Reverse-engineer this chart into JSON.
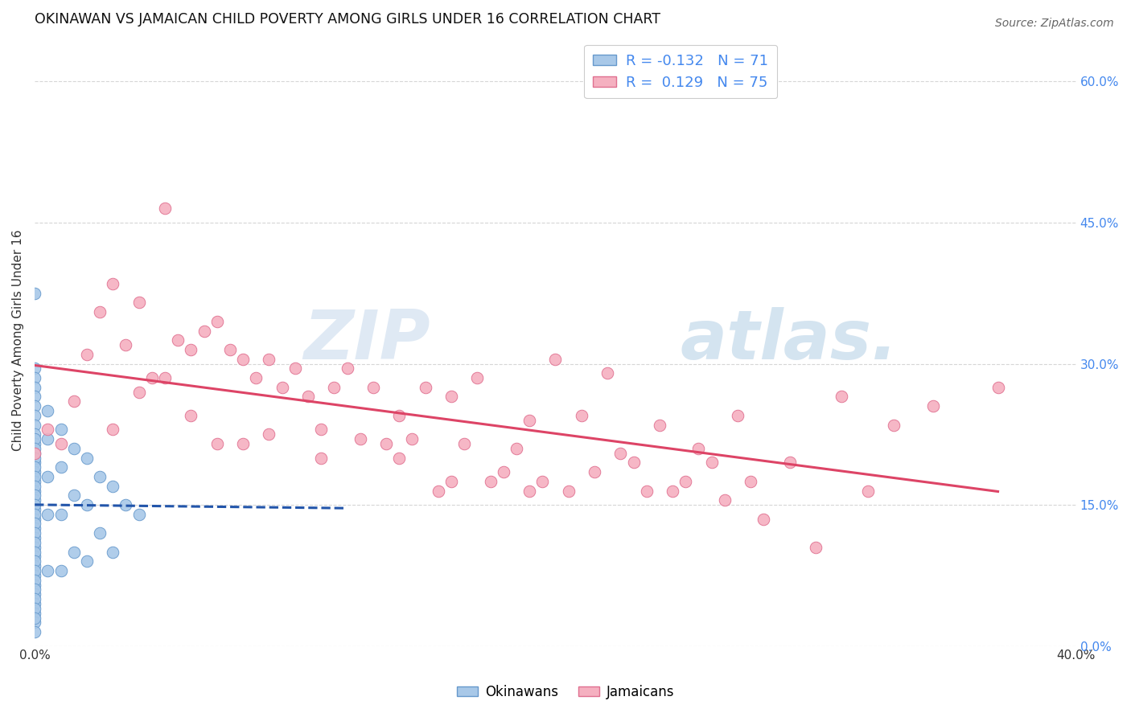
{
  "title": "OKINAWAN VS JAMAICAN CHILD POVERTY AMONG GIRLS UNDER 16 CORRELATION CHART",
  "source": "Source: ZipAtlas.com",
  "ylabel": "Child Poverty Among Girls Under 16",
  "xlim": [
    0.0,
    0.4
  ],
  "ylim": [
    0.0,
    0.65
  ],
  "xticks": [
    0.0,
    0.05,
    0.1,
    0.15,
    0.2,
    0.25,
    0.3,
    0.35,
    0.4
  ],
  "xticklabels": [
    "0.0%",
    "",
    "",
    "",
    "",
    "",
    "",
    "",
    "40.0%"
  ],
  "ytick_positions": [
    0.0,
    0.15,
    0.3,
    0.45,
    0.6
  ],
  "ytick_labels": [
    "0.0%",
    "15.0%",
    "30.0%",
    "45.0%",
    "60.0%"
  ],
  "legend_r_okinawan": "-0.132",
  "legend_n_okinawan": "71",
  "legend_r_jamaican": "0.129",
  "legend_n_jamaican": "75",
  "okinawan_color": "#a8c8e8",
  "jamaican_color": "#f5b0c0",
  "okinawan_edge": "#6699cc",
  "jamaican_edge": "#e07090",
  "trend_okinawan_color": "#2255aa",
  "trend_jamaican_color": "#dd4466",
  "watermark_zip": "ZIP",
  "watermark_atlas": "atlas.",
  "background_color": "#ffffff",
  "grid_color": "#cccccc",
  "title_color": "#111111",
  "axis_label_color": "#333333",
  "right_tick_color": "#4488ee",
  "okinawan_x": [
    0.0,
    0.0,
    0.0,
    0.0,
    0.0,
    0.0,
    0.0,
    0.0,
    0.0,
    0.0,
    0.0,
    0.0,
    0.0,
    0.0,
    0.0,
    0.0,
    0.0,
    0.0,
    0.0,
    0.0,
    0.0,
    0.0,
    0.0,
    0.0,
    0.0,
    0.0,
    0.0,
    0.0,
    0.0,
    0.0,
    0.0,
    0.0,
    0.0,
    0.0,
    0.0,
    0.0,
    0.0,
    0.0,
    0.0,
    0.0,
    0.0,
    0.0,
    0.0,
    0.0,
    0.0,
    0.0,
    0.0,
    0.0,
    0.0,
    0.0,
    0.005,
    0.005,
    0.005,
    0.005,
    0.005,
    0.01,
    0.01,
    0.01,
    0.01,
    0.015,
    0.015,
    0.015,
    0.02,
    0.02,
    0.02,
    0.025,
    0.025,
    0.03,
    0.03,
    0.035,
    0.04
  ],
  "okinawan_y": [
    0.375,
    0.295,
    0.285,
    0.275,
    0.265,
    0.255,
    0.245,
    0.235,
    0.225,
    0.215,
    0.205,
    0.195,
    0.185,
    0.175,
    0.165,
    0.155,
    0.145,
    0.135,
    0.125,
    0.115,
    0.105,
    0.095,
    0.085,
    0.075,
    0.065,
    0.055,
    0.045,
    0.035,
    0.025,
    0.015,
    0.22,
    0.21,
    0.2,
    0.19,
    0.18,
    0.17,
    0.16,
    0.15,
    0.14,
    0.13,
    0.12,
    0.11,
    0.1,
    0.09,
    0.08,
    0.07,
    0.06,
    0.05,
    0.04,
    0.03,
    0.25,
    0.22,
    0.18,
    0.14,
    0.08,
    0.23,
    0.19,
    0.14,
    0.08,
    0.21,
    0.16,
    0.1,
    0.2,
    0.15,
    0.09,
    0.18,
    0.12,
    0.17,
    0.1,
    0.15,
    0.14
  ],
  "jamaican_x": [
    0.0,
    0.005,
    0.01,
    0.015,
    0.02,
    0.025,
    0.03,
    0.03,
    0.035,
    0.04,
    0.04,
    0.045,
    0.05,
    0.05,
    0.055,
    0.06,
    0.06,
    0.065,
    0.07,
    0.07,
    0.075,
    0.08,
    0.08,
    0.085,
    0.09,
    0.09,
    0.095,
    0.1,
    0.105,
    0.11,
    0.11,
    0.115,
    0.12,
    0.125,
    0.13,
    0.135,
    0.14,
    0.14,
    0.145,
    0.15,
    0.155,
    0.16,
    0.16,
    0.165,
    0.17,
    0.175,
    0.18,
    0.185,
    0.19,
    0.19,
    0.195,
    0.2,
    0.205,
    0.21,
    0.215,
    0.22,
    0.225,
    0.23,
    0.235,
    0.24,
    0.245,
    0.25,
    0.255,
    0.26,
    0.265,
    0.27,
    0.275,
    0.28,
    0.29,
    0.3,
    0.31,
    0.32,
    0.33,
    0.345,
    0.37
  ],
  "jamaican_y": [
    0.205,
    0.23,
    0.215,
    0.26,
    0.31,
    0.355,
    0.385,
    0.23,
    0.32,
    0.365,
    0.27,
    0.285,
    0.465,
    0.285,
    0.325,
    0.315,
    0.245,
    0.335,
    0.345,
    0.215,
    0.315,
    0.305,
    0.215,
    0.285,
    0.305,
    0.225,
    0.275,
    0.295,
    0.265,
    0.23,
    0.2,
    0.275,
    0.295,
    0.22,
    0.275,
    0.215,
    0.245,
    0.2,
    0.22,
    0.275,
    0.165,
    0.265,
    0.175,
    0.215,
    0.285,
    0.175,
    0.185,
    0.21,
    0.24,
    0.165,
    0.175,
    0.305,
    0.165,
    0.245,
    0.185,
    0.29,
    0.205,
    0.195,
    0.165,
    0.235,
    0.165,
    0.175,
    0.21,
    0.195,
    0.155,
    0.245,
    0.175,
    0.135,
    0.195,
    0.105,
    0.265,
    0.165,
    0.235,
    0.255,
    0.275
  ]
}
